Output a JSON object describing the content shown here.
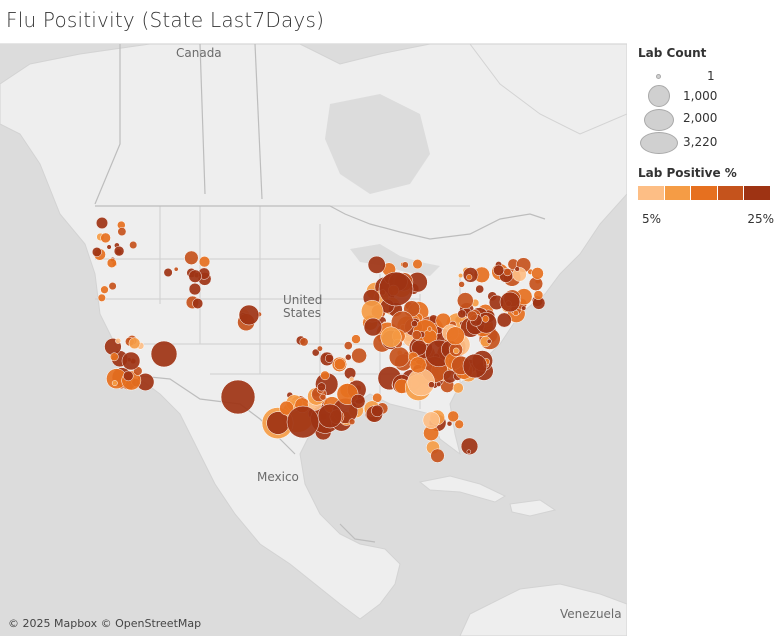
{
  "title": "Flu Positivity (State Last7Days)",
  "map": {
    "labels": {
      "canada": "Canada",
      "united_states": "United States",
      "mexico": "Mexico",
      "venezuela": "Venezuela"
    },
    "attribution": "© 2025 Mapbox © OpenStreetMap",
    "background_color": "#dcdcdc",
    "land_color": "#eeeeee",
    "border_color": "#bdbdbd"
  },
  "legend": {
    "size_title": "Lab Count",
    "size_items": [
      {
        "label": "1"
      },
      {
        "label": "1,000"
      },
      {
        "label": "2,000"
      },
      {
        "label": "3,220"
      }
    ],
    "color_title": "Lab Positive %",
    "color_min_label": "5%",
    "color_max_label": "25%",
    "color_steps": [
      "#fdbe85",
      "#f59c45",
      "#e6701f",
      "#c5531c",
      "#9e3313"
    ]
  }
}
